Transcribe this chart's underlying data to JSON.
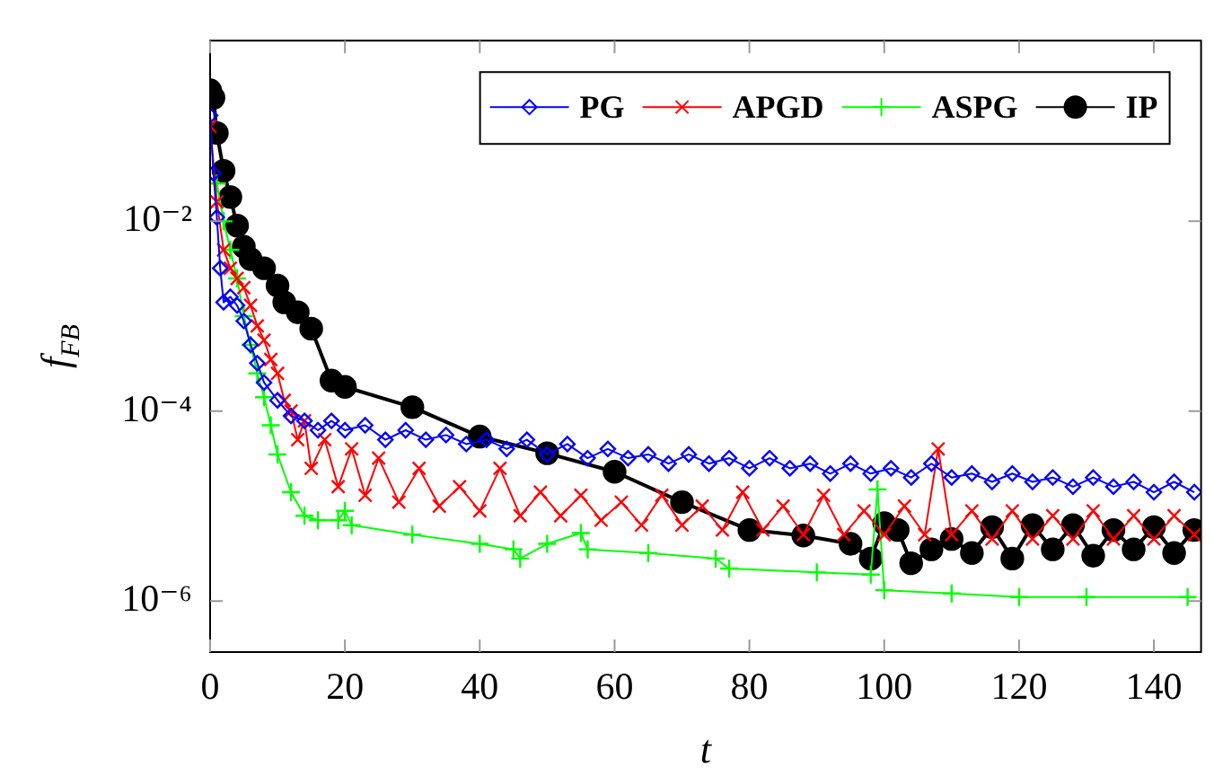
{
  "chart_data": {
    "type": "line",
    "xlabel": "t",
    "ylabel": "f$_{FB}$",
    "log": "y",
    "legend": "top right",
    "grid": false,
    "xlim": [
      0,
      147
    ],
    "xticks": [
      0,
      20,
      40,
      60,
      80,
      100,
      120,
      140
    ],
    "ylim": [
      2.9e-07,
      0.8
    ],
    "yticks": [
      {
        "value": 1e-06,
        "label": "10⁻⁶"
      },
      {
        "value": 0.0001,
        "label": "10⁻⁴"
      },
      {
        "value": 0.01,
        "label": "10⁻²"
      }
    ],
    "series": [
      {
        "name": "PG",
        "color": "#0000ff",
        "marker": "diamond",
        "x": [
          0,
          0.5,
          1,
          1.5,
          2,
          3,
          4,
          5,
          6,
          7,
          8,
          10,
          12,
          14,
          16,
          18,
          20,
          23,
          26,
          29,
          32,
          35,
          38,
          41,
          44,
          47,
          50,
          53,
          56,
          59,
          62,
          65,
          68,
          71,
          74,
          77,
          80,
          83,
          86,
          89,
          92,
          95,
          98,
          101,
          104,
          107,
          110,
          113,
          116,
          119,
          122,
          125,
          128,
          131,
          134,
          137,
          140,
          143,
          146
        ],
        "values": [
          0.13,
          0.032,
          0.011,
          0.0032,
          0.0014,
          0.0016,
          0.0013,
          0.00089,
          0.0005,
          0.00032,
          0.0002,
          0.00013,
          8.9e-05,
          7.9e-05,
          6.3e-05,
          7.9e-05,
          6.3e-05,
          7.1e-05,
          5e-05,
          6.3e-05,
          5e-05,
          5.6e-05,
          4.5e-05,
          5e-05,
          4e-05,
          5e-05,
          3.5e-05,
          4.5e-05,
          3.2e-05,
          4e-05,
          3.2e-05,
          3.5e-05,
          2.8e-05,
          3.5e-05,
          2.8e-05,
          3.2e-05,
          2.5e-05,
          3.2e-05,
          2.5e-05,
          2.8e-05,
          2.2e-05,
          2.8e-05,
          2.2e-05,
          2.5e-05,
          2e-05,
          2.8e-05,
          2e-05,
          2.2e-05,
          1.8e-05,
          2.2e-05,
          1.8e-05,
          2e-05,
          1.6e-05,
          2e-05,
          1.6e-05,
          1.8e-05,
          1.4e-05,
          1.8e-05,
          1.4e-05
        ]
      },
      {
        "name": "APGD",
        "color": "#ff0000",
        "marker": "cross",
        "x": [
          0,
          1,
          2,
          3,
          4,
          5,
          6,
          7,
          8,
          9,
          10,
          11,
          12,
          13,
          14,
          15,
          17,
          19,
          21,
          23,
          25,
          28,
          31,
          34,
          37,
          40,
          43,
          46,
          49,
          52,
          55,
          58,
          61,
          64,
          67,
          70,
          73,
          76,
          79,
          82,
          85,
          88,
          91,
          94,
          97,
          100,
          103,
          106,
          108,
          110,
          113,
          116,
          119,
          122,
          125,
          128,
          131,
          134,
          137,
          140,
          143,
          146
        ],
        "values": [
          0.1,
          0.016,
          0.005,
          0.0032,
          0.0025,
          0.002,
          0.0013,
          0.00079,
          0.00056,
          0.00035,
          0.00025,
          0.00013,
          0.0001,
          5e-05,
          7.9e-05,
          2.5e-05,
          5e-05,
          1.6e-05,
          4e-05,
          1.3e-05,
          3.2e-05,
          1.1e-05,
          2.5e-05,
          1e-05,
          1.6e-05,
          8.9e-06,
          2.5e-05,
          7.9e-06,
          1.4e-05,
          7.9e-06,
          1.3e-05,
          7.1e-06,
          1.1e-05,
          6.3e-06,
          1.3e-05,
          6.3e-06,
          1e-05,
          5.6e-06,
          1.4e-05,
          5.6e-06,
          1e-05,
          5e-06,
          1.3e-05,
          5e-06,
          8.9e-06,
          5e-06,
          1e-05,
          5e-06,
          4e-05,
          5e-06,
          8.9e-06,
          4.5e-06,
          8.9e-06,
          4.5e-06,
          7.9e-06,
          4.5e-06,
          8.9e-06,
          4.5e-06,
          7.9e-06,
          4.5e-06,
          7.9e-06,
          5e-06
        ]
      },
      {
        "name": "ASPG",
        "color": "#00ff00",
        "marker": "plus",
        "x": [
          1,
          2,
          3,
          4,
          5,
          6,
          7,
          8,
          9,
          10,
          12,
          14,
          16,
          19,
          20,
          21,
          30,
          40,
          45,
          46,
          50,
          55,
          56,
          65,
          75,
          77,
          90,
          98,
          99,
          100,
          110,
          120,
          130,
          145
        ],
        "values": [
          0.025,
          0.01,
          0.005,
          0.0025,
          0.001,
          0.0005,
          0.00025,
          0.00014,
          7.1e-05,
          3.5e-05,
          1.4e-05,
          7.9e-06,
          7.1e-06,
          7.1e-06,
          8.9e-06,
          6.3e-06,
          5e-06,
          4e-06,
          3.5e-06,
          2.8e-06,
          4e-06,
          5.2e-06,
          3.5e-06,
          3.2e-06,
          2.8e-06,
          2.2e-06,
          2e-06,
          1.9e-06,
          1.5e-05,
          1.3e-06,
          1.2e-06,
          1.1e-06,
          1.1e-06,
          1.1e-06
        ]
      },
      {
        "name": "IP",
        "color": "#000000",
        "marker": "circle",
        "x": [
          0,
          0.5,
          1,
          2,
          3,
          4,
          5,
          6,
          8,
          10,
          11,
          13,
          15,
          18,
          20,
          30,
          40,
          50,
          60,
          70,
          80,
          88,
          95,
          98,
          100,
          102,
          104,
          107,
          110,
          113,
          116,
          119,
          122,
          125,
          128,
          131,
          134,
          137,
          140,
          143,
          146
        ],
        "values": [
          0.24,
          0.2,
          0.085,
          0.034,
          0.018,
          0.009,
          0.0054,
          0.004,
          0.0032,
          0.0021,
          0.0014,
          0.0011,
          0.00074,
          0.00021,
          0.00018,
          0.00011,
          5.4e-05,
          3.6e-05,
          2.3e-05,
          1.1e-05,
          5.6e-06,
          4.9e-06,
          4e-06,
          2.8e-06,
          6.6e-06,
          5.6e-06,
          2.5e-06,
          3.5e-06,
          4.5e-06,
          3.2e-06,
          6e-06,
          2.8e-06,
          6.3e-06,
          3.5e-06,
          6.3e-06,
          3e-06,
          5.6e-06,
          3.5e-06,
          6e-06,
          3.2e-06,
          5.6e-06
        ]
      }
    ]
  }
}
